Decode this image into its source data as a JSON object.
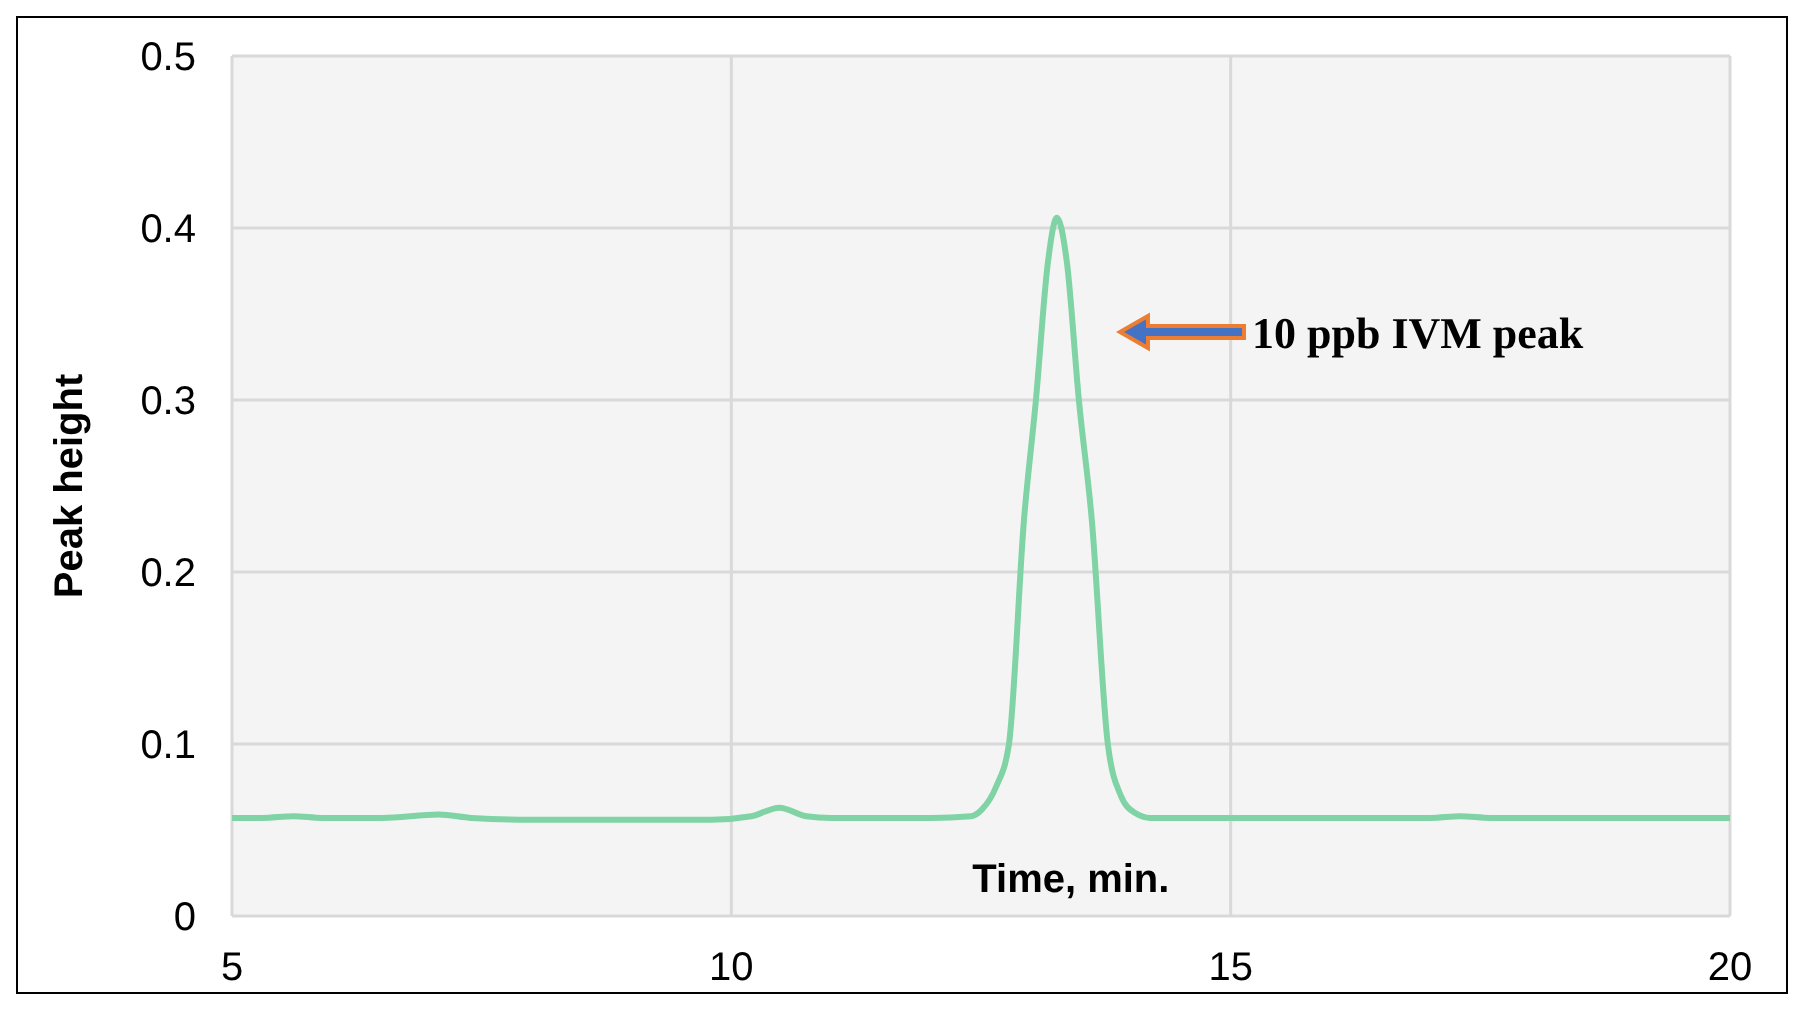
{
  "chart_data": {
    "type": "line",
    "xlabel": "Time, min.",
    "ylabel": "Peak height",
    "x": [
      5,
      5.3,
      5.62,
      5.9,
      6.5,
      7.07,
      7.4,
      8,
      9,
      9.8,
      10.2,
      10.48,
      10.75,
      11,
      11.5,
      12,
      12.4,
      12.51,
      12.65,
      12.78,
      12.93,
      13.05,
      13.17,
      13.26,
      13.36,
      13.48,
      13.61,
      13.77,
      13.9,
      14.04,
      14.2,
      15,
      16,
      17,
      17.3,
      17.6,
      18,
      19,
      20
    ],
    "series": [
      {
        "color": "#7fd3a4",
        "values": [
          0.057,
          0.057,
          0.058,
          0.057,
          0.057,
          0.059,
          0.057,
          0.056,
          0.056,
          0.056,
          0.058,
          0.063,
          0.058,
          0.057,
          0.057,
          0.057,
          0.058,
          0.062,
          0.075,
          0.1,
          0.23,
          0.3,
          0.38,
          0.406,
          0.38,
          0.3,
          0.23,
          0.1,
          0.07,
          0.06,
          0.057,
          0.057,
          0.057,
          0.057,
          0.058,
          0.057,
          0.057,
          0.057,
          0.057
        ]
      }
    ],
    "xlim": [
      5,
      20
    ],
    "xticks": [
      5,
      10,
      15,
      20
    ],
    "ylim": [
      0,
      0.5
    ],
    "yticks": [
      0,
      0.1,
      0.2,
      0.3,
      0.4,
      0.5
    ],
    "grid": true,
    "annotations": [
      "10 ppb IVM peak"
    ]
  }
}
